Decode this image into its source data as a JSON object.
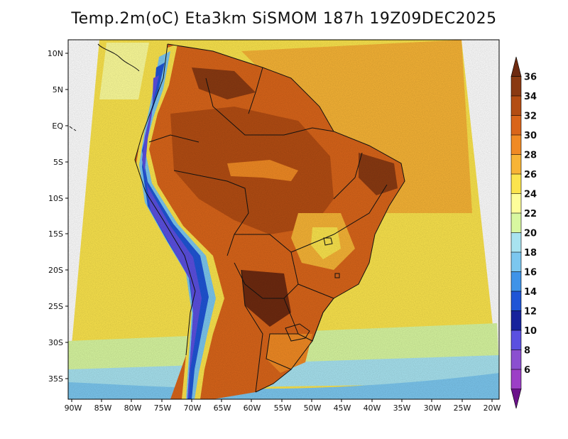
{
  "title": "Temp.2m(oC) Eta3km SiSMOM 187h 19Z09DEC2025",
  "axes": {
    "lat_labels": [
      "10N",
      "5N",
      "EQ",
      "5S",
      "10S",
      "15S",
      "20S",
      "25S",
      "30S",
      "35S"
    ],
    "lon_labels": [
      "90W",
      "85W",
      "80W",
      "75W",
      "70W",
      "65W",
      "60W",
      "55W",
      "50W",
      "45W",
      "40W",
      "35W",
      "30W",
      "25W",
      "20W"
    ]
  },
  "colorbar": {
    "labels": [
      "36",
      "34",
      "32",
      "30",
      "28",
      "26",
      "24",
      "22",
      "20",
      "18",
      "16",
      "14",
      "12",
      "10",
      "8",
      "6"
    ],
    "colors": [
      "#6e2a10",
      "#8a3a12",
      "#b34d13",
      "#d9651a",
      "#f08a24",
      "#f7b436",
      "#fbe44d",
      "#fdfd9a",
      "#d8f7a0",
      "#a8e3f0",
      "#7cc7ef",
      "#3f93e8",
      "#1f55d6",
      "#16229c",
      "#5b50e0",
      "#8b4fd0",
      "#9c3fc6",
      "#6b128a"
    ]
  }
}
